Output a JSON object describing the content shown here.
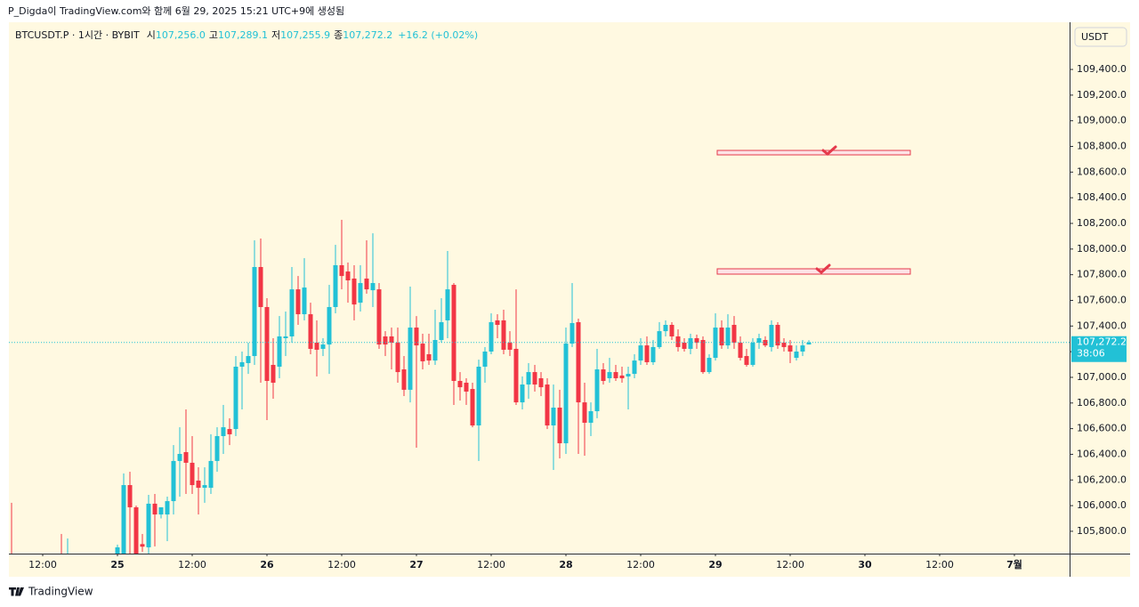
{
  "header": "P_Digda이 TradingView.com와 함께 6월 29, 2025 15:21 UTC+9에 생성됨",
  "footer": "TradingView",
  "chart_data": {
    "type": "candlestick",
    "title": "BTCUSDT.P · 1시간 · BYBIT",
    "ohlc_legend": [
      {
        "label": "시",
        "value": "107,256.0"
      },
      {
        "label": "고",
        "value": "107,289.1"
      },
      {
        "label": "저",
        "value": "107,255.9"
      },
      {
        "label": "종",
        "value": "107,272.2"
      }
    ],
    "change": "+16.2 (+0.02%)",
    "currency": "USDT",
    "last_price_label": "107,272.2",
    "countdown": "38:06",
    "up_color": "#22c1d6",
    "down_color": "#f23645",
    "x": [
      0,
      8,
      9,
      17,
      18,
      19,
      20,
      21,
      22,
      23,
      24,
      25,
      26,
      27,
      28,
      29,
      30,
      31,
      32,
      33,
      34,
      35,
      36,
      37,
      38,
      39,
      40,
      41,
      42,
      43,
      44,
      45,
      46,
      47,
      48,
      49,
      50,
      51,
      52,
      53,
      54,
      55,
      56,
      57,
      58,
      59,
      60,
      61,
      62,
      63,
      64,
      65,
      66,
      67,
      68,
      69,
      70,
      71,
      72,
      73,
      74,
      75,
      76,
      77,
      78,
      79,
      80,
      81,
      82,
      83,
      84,
      85,
      86,
      87,
      88,
      89,
      90,
      91,
      92,
      93,
      94,
      95,
      96,
      97,
      98,
      99,
      100,
      101,
      102,
      103,
      104,
      105,
      106,
      107,
      108,
      109,
      110,
      111,
      112,
      113,
      114,
      115,
      116,
      117,
      118,
      119,
      120,
      121,
      122,
      123,
      124,
      125,
      126,
      127,
      128
    ],
    "open": [
      105600,
      105580,
      105560,
      105600,
      105620,
      106160,
      105987,
      105700,
      105675,
      106015,
      105931,
      105931,
      106035,
      106348,
      106417,
      106334,
      106195,
      106139,
      106139,
      106348,
      106542,
      106597,
      106597,
      107083,
      107111,
      107166,
      107860,
      107548,
      107097,
      107083,
      107305,
      107319,
      107686,
      107492,
      107492,
      107270,
      107222,
      107256,
      107548,
      107874,
      107825,
      107770,
      107582,
      107770,
      107679,
      107686,
      107319,
      107319,
      107270,
      107062,
      106903,
      107388,
      107263,
      107180,
      107131,
      107291,
      107444,
      107721,
      106972,
      106958,
      106909,
      106625,
      107083,
      107201,
      107444,
      107444,
      107270,
      107222,
      106805,
      106944,
      107041,
      106993,
      106944,
      106625,
      106764,
      106486,
      107263,
      107430,
      106805,
      106646,
      106736,
      107062,
      106993,
      107041,
      107014,
      107007,
      107027,
      107131,
      107249,
      107118,
      107236,
      107360,
      107409,
      107319,
      107270,
      107222,
      107305,
      107291,
      107041,
      107152,
      107388,
      107249,
      107409,
      107270,
      107166,
      107097,
      107270,
      107291,
      107236,
      107409,
      107270,
      107249,
      107152,
      107201,
      107256.0
    ],
    "high": [
      106022,
      105779,
      105744,
      105696,
      106251,
      106264,
      106000,
      105779,
      106084,
      106091,
      105987,
      106070,
      106472,
      106611,
      106750,
      106542,
      106299,
      106299,
      106556,
      106611,
      106785,
      106681,
      107166,
      107201,
      107270,
      108068,
      108082,
      107617,
      107305,
      107478,
      107513,
      107860,
      107790,
      107929,
      107582,
      107444,
      107305,
      107721,
      108033,
      108228,
      107895,
      107874,
      107874,
      108068,
      108123,
      107735,
      107360,
      107388,
      107388,
      107166,
      107707,
      107478,
      107340,
      107340,
      107527,
      107617,
      107985,
      107735,
      107041,
      106993,
      106958,
      107138,
      107236,
      107499,
      107492,
      107527,
      107360,
      107686,
      107007,
      107111,
      107097,
      107041,
      106993,
      106944,
      106903,
      107388,
      107735,
      107458,
      106958,
      106805,
      107222,
      107111,
      107152,
      107097,
      107083,
      107083,
      107180,
      107305,
      107319,
      107291,
      107430,
      107444,
      107430,
      107374,
      107305,
      107340,
      107333,
      107319,
      107180,
      107499,
      107444,
      107492,
      107478,
      107319,
      107222,
      107305,
      107340,
      107320,
      107444,
      107430,
      107305,
      107291,
      107249,
      107291,
      107289.1
    ],
    "low": [
      105520,
      105500,
      105520,
      105560,
      105600,
      105600,
      105560,
      105640,
      105626,
      105682,
      105900,
      105723,
      105931,
      106070,
      106091,
      106091,
      105931,
      106022,
      106091,
      106264,
      106403,
      106472,
      106542,
      106750,
      107027,
      107097,
      106958,
      106667,
      106833,
      106993,
      107166,
      107270,
      107409,
      107444,
      107180,
      107007,
      107166,
      107027,
      107499,
      107686,
      107582,
      107444,
      107513,
      107652,
      107548,
      107222,
      107166,
      107062,
      106958,
      106854,
      106805,
      106452,
      107062,
      107097,
      107097,
      107270,
      107305,
      106785,
      106819,
      106785,
      106611,
      106348,
      106958,
      107180,
      107305,
      107180,
      107166,
      106785,
      106750,
      106833,
      106889,
      106854,
      106597,
      106278,
      106368,
      106403,
      107236,
      106403,
      106389,
      106542,
      106681,
      106944,
      106958,
      106972,
      106958,
      106750,
      106993,
      107097,
      107097,
      107097,
      107222,
      107319,
      107291,
      107201,
      107201,
      107180,
      107222,
      107027,
      107027,
      107131,
      107222,
      107222,
      107222,
      107131,
      107083,
      107083,
      107222,
      107236,
      107201,
      107222,
      107201,
      107111,
      107131,
      107166,
      107255.9
    ],
    "close": [
      105560,
      105550,
      105590,
      105675,
      106160,
      105987,
      105600,
      105680,
      106015,
      105931,
      105987,
      106035,
      106348,
      106403,
      106334,
      106160,
      106139,
      106160,
      106348,
      106542,
      106611,
      106556,
      107083,
      107118,
      107166,
      107860,
      107548,
      106972,
      106958,
      107319,
      107319,
      107686,
      107492,
      107700,
      107222,
      107215,
      107256,
      107548,
      107874,
      107790,
      107756,
      107568,
      107735,
      107686,
      107735,
      107256,
      107256,
      107270,
      107041,
      106903,
      107388,
      107249,
      107125,
      107131,
      107291,
      107430,
      107686,
      106972,
      106923,
      106889,
      106625,
      107083,
      107201,
      107430,
      107409,
      107215,
      107215,
      106805,
      106944,
      107041,
      106944,
      106923,
      106625,
      106764,
      106486,
      107263,
      107423,
      106805,
      106646,
      106736,
      107062,
      106972,
      107041,
      106993,
      106993,
      107027,
      107131,
      107249,
      107118,
      107236,
      107360,
      107409,
      107319,
      107236,
      107222,
      107305,
      107270,
      107041,
      107152,
      107388,
      107249,
      107388,
      107270,
      107152,
      107097,
      107270,
      107305,
      107249,
      107409,
      107249,
      107236,
      107201,
      107201,
      107249,
      107272.2
    ],
    "xlim": [
      -0.43,
      169.86
    ],
    "xticks": [
      {
        "value": 5,
        "label": "12:00"
      },
      {
        "value": 17,
        "label": "25"
      },
      {
        "value": 29,
        "label": "12:00"
      },
      {
        "value": 41,
        "label": "26"
      },
      {
        "value": 53,
        "label": "12:00"
      },
      {
        "value": 65,
        "label": "27"
      },
      {
        "value": 77,
        "label": "12:00"
      },
      {
        "value": 89,
        "label": "28"
      },
      {
        "value": 101,
        "label": "12:00"
      },
      {
        "value": 113,
        "label": "29"
      },
      {
        "value": 125,
        "label": "12:00"
      },
      {
        "value": 137,
        "label": "30"
      },
      {
        "value": 149,
        "label": "12:00"
      },
      {
        "value": 161,
        "label": "7월"
      }
    ],
    "ylim": [
      105626,
      109768
    ],
    "yticks": [
      {
        "value": 105800,
        "label": "105,800.0"
      },
      {
        "value": 106000,
        "label": "106,000.0"
      },
      {
        "value": 106200,
        "label": "106,200.0"
      },
      {
        "value": 106400,
        "label": "106,400.0"
      },
      {
        "value": 106600,
        "label": "106,600.0"
      },
      {
        "value": 106800,
        "label": "106,800.0"
      },
      {
        "value": 107000,
        "label": "107,000.0"
      },
      {
        "value": 107200,
        "label": "107,200.0"
      },
      {
        "value": 107400,
        "label": "107,400.0"
      },
      {
        "value": 107600,
        "label": "107,600.0"
      },
      {
        "value": 107800,
        "label": "107,800.0"
      },
      {
        "value": 108000,
        "label": "108,000.0"
      },
      {
        "value": 108200,
        "label": "108,200.0"
      },
      {
        "value": 108400,
        "label": "108,400.0"
      },
      {
        "value": 108600,
        "label": "108,600.0"
      },
      {
        "value": 108800,
        "label": "108,800.0"
      },
      {
        "value": 109000,
        "label": "109,000.0"
      },
      {
        "value": 109200,
        "label": "109,200.0"
      },
      {
        "value": 109400,
        "label": "109,400.0"
      }
    ]
  }
}
